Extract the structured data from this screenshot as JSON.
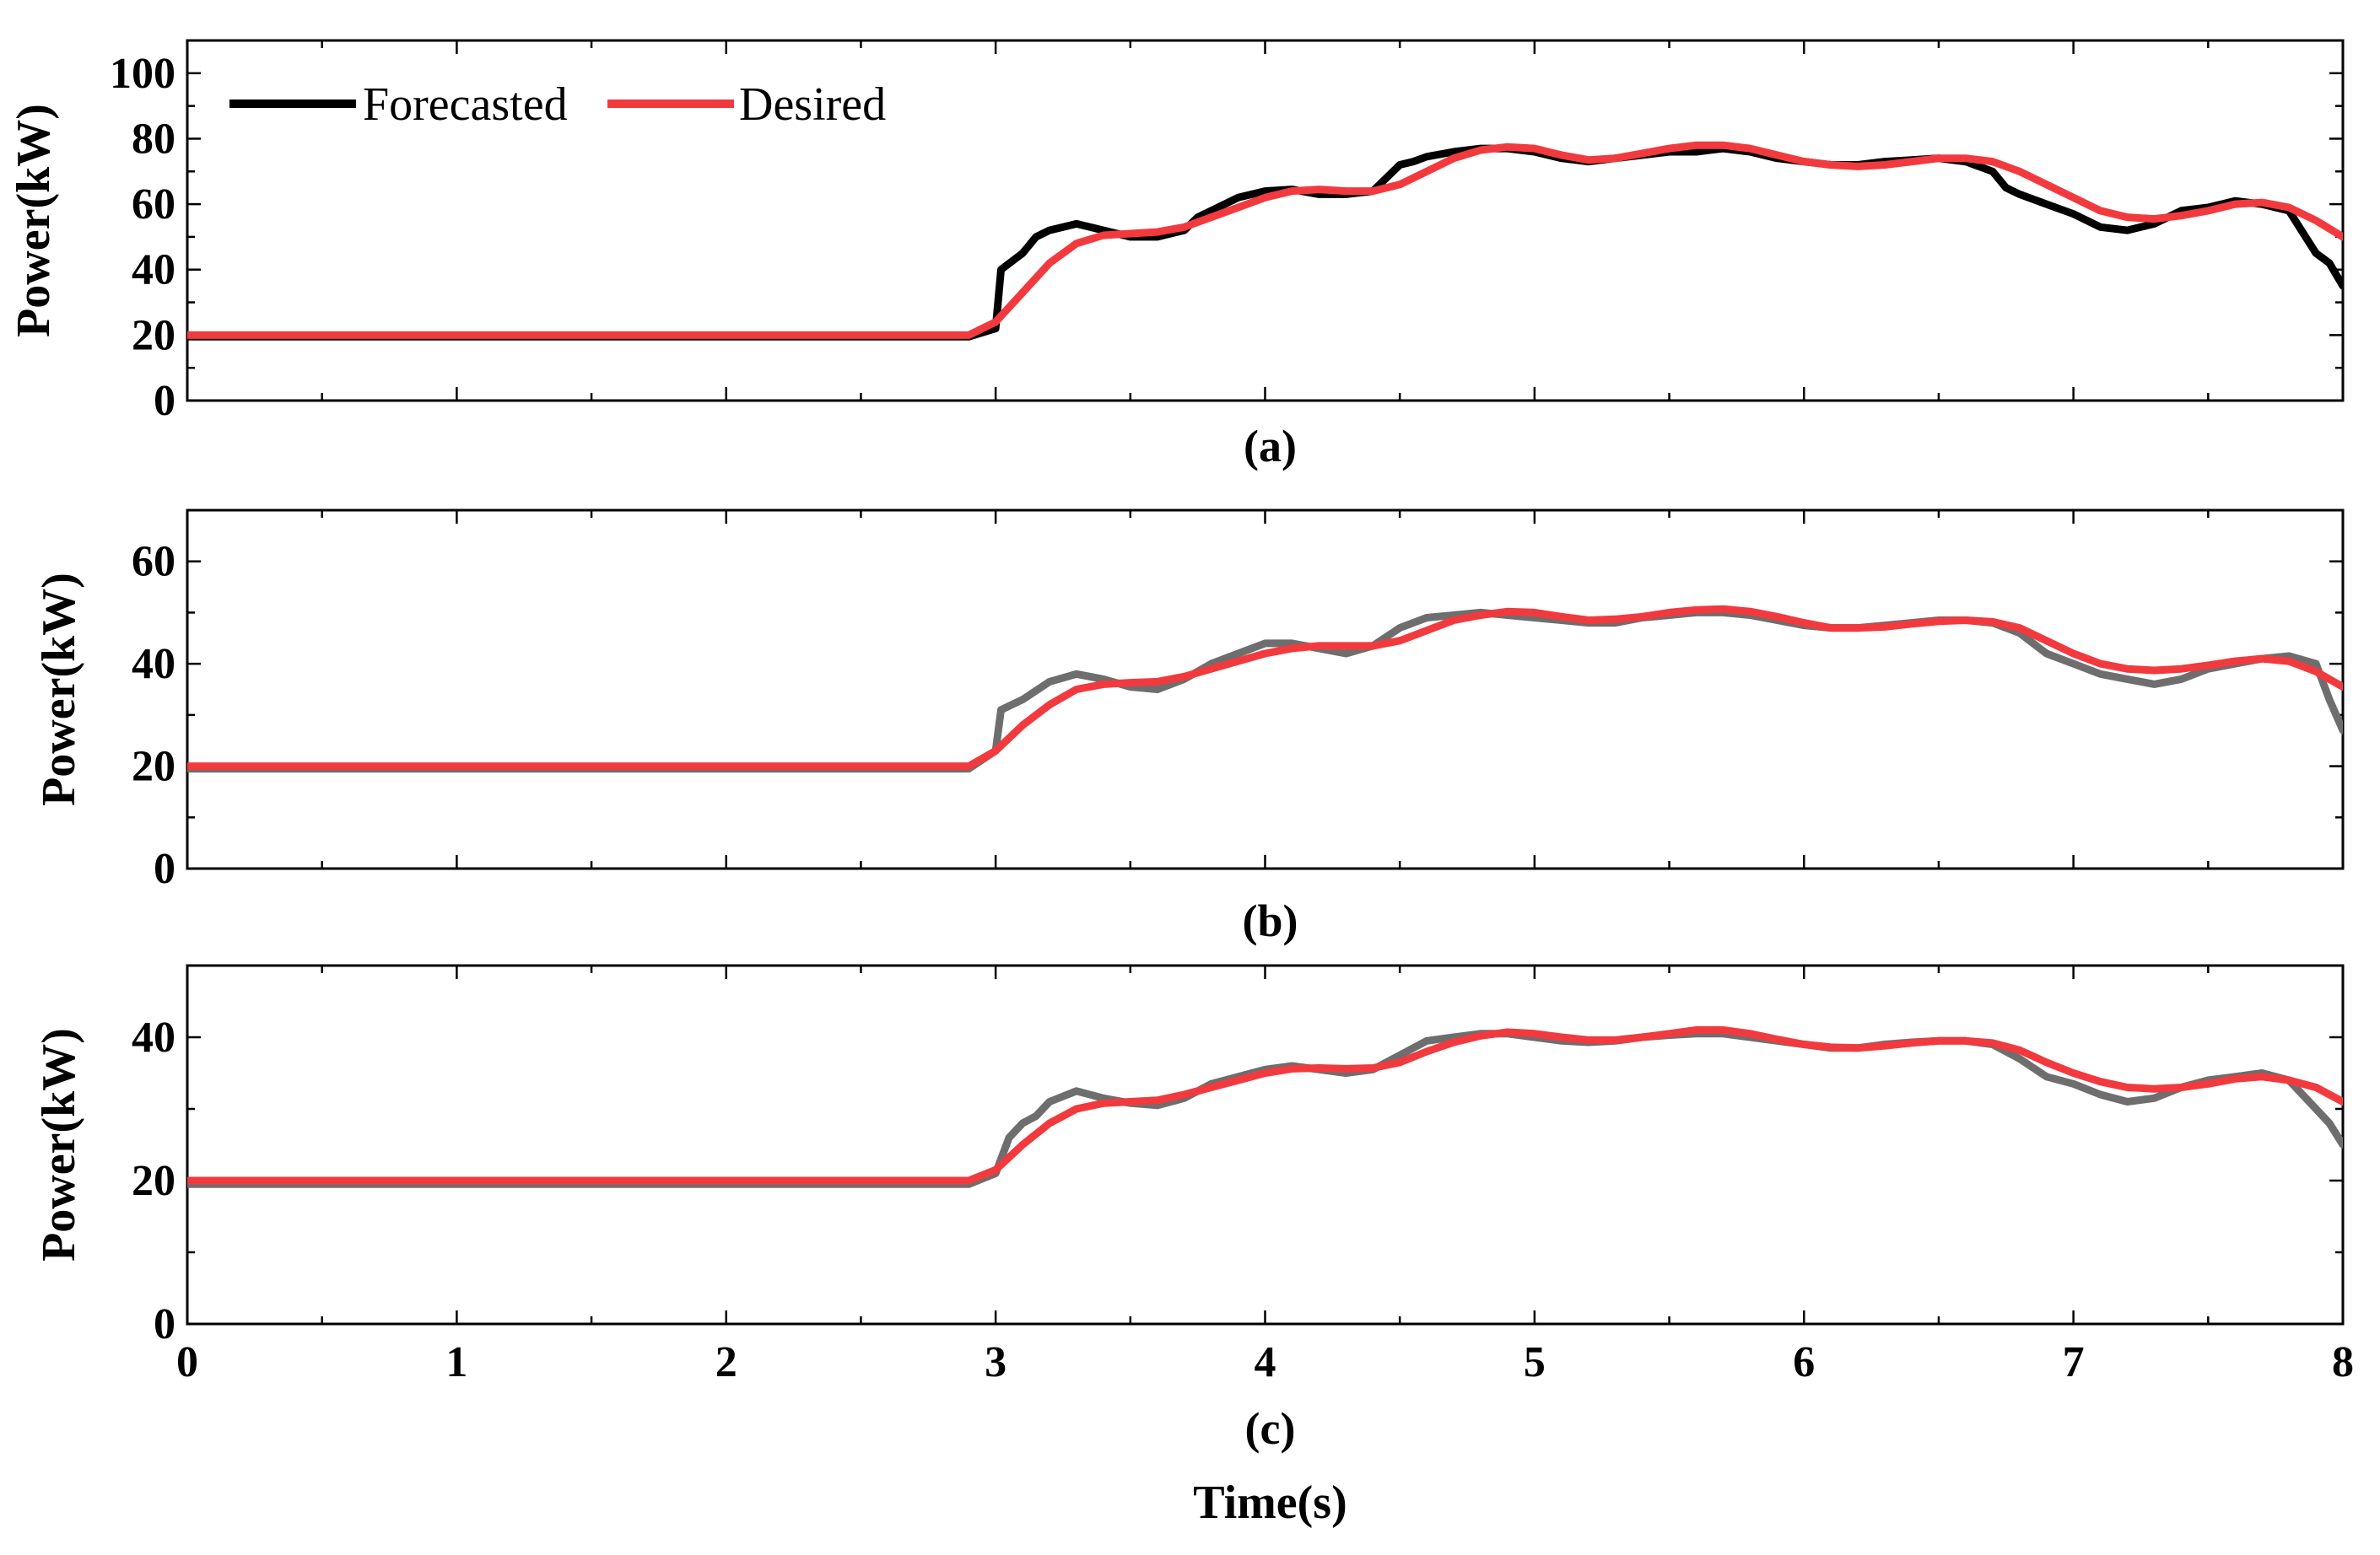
{
  "chart_data": [
    {
      "type": "line",
      "panel_label": "(a)",
      "ylabel": "Power(kW)",
      "xlabel": "",
      "xlim": [
        0,
        8
      ],
      "ylim": [
        0,
        110
      ],
      "yticks": [
        0,
        20,
        40,
        60,
        80,
        100
      ],
      "legend": {
        "placement": "top-left",
        "entries": [
          "Forecasted",
          "Desired"
        ]
      },
      "series": [
        {
          "name": "Forecasted",
          "color": "#000000",
          "x": [
            0,
            2.9,
            3.0,
            3.02,
            3.1,
            3.15,
            3.2,
            3.3,
            3.4,
            3.5,
            3.6,
            3.7,
            3.75,
            3.8,
            3.9,
            4.0,
            4.1,
            4.2,
            4.3,
            4.4,
            4.5,
            4.55,
            4.6,
            4.7,
            4.8,
            4.9,
            5.0,
            5.1,
            5.2,
            5.3,
            5.4,
            5.5,
            5.6,
            5.7,
            5.8,
            5.9,
            6.0,
            6.1,
            6.2,
            6.3,
            6.4,
            6.5,
            6.6,
            6.7,
            6.75,
            6.8,
            6.9,
            7.0,
            7.1,
            7.2,
            7.3,
            7.4,
            7.5,
            7.6,
            7.7,
            7.8,
            7.9,
            7.95,
            8.0
          ],
          "y": [
            19.5,
            19.5,
            22,
            40,
            45,
            50,
            52,
            54,
            52,
            50,
            50,
            52,
            56,
            58,
            62,
            64,
            64.5,
            63,
            63,
            64,
            72,
            73,
            74.5,
            76,
            77,
            77,
            76,
            74,
            73,
            74,
            75,
            76,
            76,
            77,
            76,
            74,
            73,
            72,
            72,
            73,
            73.5,
            74,
            73,
            70,
            65,
            63,
            60,
            57,
            53,
            52,
            54,
            58,
            59,
            61,
            60,
            58,
            45,
            42,
            35
          ]
        },
        {
          "name": "Desired",
          "color": "#f23a3e",
          "x": [
            0,
            2.9,
            3.0,
            3.1,
            3.2,
            3.3,
            3.4,
            3.5,
            3.6,
            3.7,
            3.8,
            3.9,
            4.0,
            4.1,
            4.2,
            4.3,
            4.4,
            4.5,
            4.6,
            4.7,
            4.8,
            4.9,
            5.0,
            5.1,
            5.2,
            5.3,
            5.4,
            5.5,
            5.6,
            5.7,
            5.8,
            5.9,
            6.0,
            6.1,
            6.2,
            6.3,
            6.4,
            6.5,
            6.6,
            6.7,
            6.8,
            6.9,
            7.0,
            7.1,
            7.2,
            7.3,
            7.4,
            7.5,
            7.6,
            7.7,
            7.8,
            7.9,
            8.0
          ],
          "y": [
            20,
            20,
            24,
            33,
            42,
            48,
            50.5,
            51,
            51.5,
            53,
            56,
            59,
            62,
            64,
            64.5,
            64,
            64,
            66,
            70,
            74,
            76.5,
            77.5,
            77,
            75,
            73.5,
            74,
            75.5,
            77,
            78,
            78,
            77,
            75,
            73,
            72,
            71.5,
            72,
            73,
            74,
            74,
            73,
            70,
            66,
            62,
            58,
            56,
            55.5,
            56.5,
            58,
            60,
            60.5,
            59,
            55,
            50
          ]
        }
      ]
    },
    {
      "type": "line",
      "panel_label": "(b)",
      "ylabel": "Power(kW)",
      "xlabel": "",
      "xlim": [
        0,
        8
      ],
      "ylim": [
        0,
        70
      ],
      "yticks": [
        0,
        20,
        40,
        60
      ],
      "series": [
        {
          "name": "Forecasted",
          "color": "#6e6e6e",
          "x": [
            0,
            2.9,
            3.0,
            3.02,
            3.1,
            3.2,
            3.3,
            3.4,
            3.5,
            3.6,
            3.7,
            3.8,
            3.9,
            4.0,
            4.1,
            4.2,
            4.3,
            4.4,
            4.5,
            4.6,
            4.7,
            4.8,
            4.9,
            5.0,
            5.1,
            5.2,
            5.3,
            5.4,
            5.5,
            5.6,
            5.7,
            5.8,
            5.9,
            6.0,
            6.1,
            6.2,
            6.3,
            6.4,
            6.5,
            6.6,
            6.7,
            6.8,
            6.9,
            7.0,
            7.1,
            7.2,
            7.3,
            7.4,
            7.5,
            7.6,
            7.7,
            7.8,
            7.9,
            7.95,
            8.0
          ],
          "y": [
            19.5,
            19.5,
            23,
            31,
            33,
            36.5,
            38,
            37,
            35.5,
            35,
            37,
            40,
            42,
            44,
            44,
            43,
            42,
            43.5,
            47,
            49,
            49.5,
            50,
            49.5,
            49,
            48.5,
            48,
            48,
            49,
            49.5,
            50,
            50,
            49.5,
            48.5,
            47.5,
            47,
            47,
            47.5,
            48,
            48.5,
            48.5,
            48,
            46,
            42,
            40,
            38,
            37,
            36,
            37,
            39,
            40,
            41,
            41.5,
            40,
            33,
            27
          ]
        },
        {
          "name": "Desired",
          "color": "#f23a3e",
          "x": [
            0,
            2.9,
            3.0,
            3.1,
            3.2,
            3.3,
            3.4,
            3.5,
            3.6,
            3.7,
            3.8,
            3.9,
            4.0,
            4.1,
            4.2,
            4.3,
            4.4,
            4.5,
            4.6,
            4.7,
            4.8,
            4.9,
            5.0,
            5.1,
            5.2,
            5.3,
            5.4,
            5.5,
            5.6,
            5.7,
            5.8,
            5.9,
            6.0,
            6.1,
            6.2,
            6.3,
            6.4,
            6.5,
            6.6,
            6.7,
            6.8,
            6.9,
            7.0,
            7.1,
            7.2,
            7.3,
            7.4,
            7.5,
            7.6,
            7.7,
            7.8,
            7.9,
            8.0
          ],
          "y": [
            20,
            20,
            23,
            28,
            32,
            35,
            36,
            36.3,
            36.5,
            37.5,
            39,
            40.5,
            42,
            43,
            43.5,
            43.5,
            43.5,
            44.5,
            46.5,
            48.5,
            49.5,
            50.2,
            50,
            49.2,
            48.5,
            48.7,
            49.2,
            50,
            50.5,
            50.7,
            50.2,
            49.2,
            48,
            47,
            47,
            47.2,
            47.8,
            48.3,
            48.5,
            48.2,
            47,
            44.5,
            42,
            40,
            39,
            38.7,
            39,
            39.7,
            40.5,
            41,
            40.5,
            38.5,
            35.5
          ]
        }
      ]
    },
    {
      "type": "line",
      "panel_label": "(c)",
      "ylabel": "Power(kW)",
      "xlabel": "Time(s)",
      "xlim": [
        0,
        8
      ],
      "xticks": [
        0,
        1,
        2,
        3,
        4,
        5,
        6,
        7,
        8
      ],
      "ylim": [
        0,
        50
      ],
      "yticks": [
        0,
        20,
        40
      ],
      "series": [
        {
          "name": "Forecasted",
          "color": "#6e6e6e",
          "x": [
            0,
            2.9,
            3.0,
            3.05,
            3.1,
            3.15,
            3.2,
            3.3,
            3.4,
            3.5,
            3.6,
            3.7,
            3.8,
            3.9,
            4.0,
            4.1,
            4.2,
            4.3,
            4.4,
            4.5,
            4.6,
            4.7,
            4.8,
            4.9,
            5.0,
            5.1,
            5.2,
            5.3,
            5.4,
            5.5,
            5.6,
            5.7,
            5.8,
            5.9,
            6.0,
            6.1,
            6.2,
            6.3,
            6.4,
            6.5,
            6.6,
            6.7,
            6.8,
            6.9,
            7.0,
            7.1,
            7.2,
            7.3,
            7.4,
            7.5,
            7.6,
            7.7,
            7.8,
            7.9,
            7.95,
            8.0
          ],
          "y": [
            19.5,
            19.5,
            21,
            26,
            28,
            29,
            31,
            32.5,
            31.5,
            30.8,
            30.5,
            31.5,
            33.5,
            34.5,
            35.5,
            36,
            35.5,
            35,
            35.5,
            37.5,
            39.5,
            40,
            40.5,
            40.5,
            40,
            39.5,
            39.3,
            39.5,
            40,
            40.3,
            40.5,
            40.5,
            40,
            39.5,
            39,
            38.5,
            38.5,
            39,
            39.3,
            39.5,
            39.5,
            39,
            37,
            34.5,
            33.5,
            32,
            31,
            31.5,
            33,
            34,
            34.5,
            35,
            34,
            30,
            28,
            25
          ]
        },
        {
          "name": "Desired",
          "color": "#f23a3e",
          "x": [
            0,
            2.9,
            3.0,
            3.1,
            3.2,
            3.3,
            3.4,
            3.5,
            3.6,
            3.7,
            3.8,
            3.9,
            4.0,
            4.1,
            4.2,
            4.3,
            4.4,
            4.5,
            4.6,
            4.7,
            4.8,
            4.9,
            5.0,
            5.1,
            5.2,
            5.3,
            5.4,
            5.5,
            5.6,
            5.7,
            5.8,
            5.9,
            6.0,
            6.1,
            6.2,
            6.3,
            6.4,
            6.5,
            6.6,
            6.7,
            6.8,
            6.9,
            7.0,
            7.1,
            7.2,
            7.3,
            7.4,
            7.5,
            7.6,
            7.7,
            7.8,
            7.9,
            8.0
          ],
          "y": [
            20,
            20,
            21.5,
            25,
            28,
            30,
            30.8,
            31,
            31.2,
            32,
            33,
            34,
            35,
            35.6,
            35.7,
            35.6,
            35.7,
            36.5,
            38,
            39.3,
            40.2,
            40.7,
            40.5,
            40,
            39.6,
            39.6,
            40,
            40.5,
            41,
            41,
            40.5,
            39.7,
            39,
            38.6,
            38.5,
            38.8,
            39.2,
            39.5,
            39.5,
            39.2,
            38.2,
            36.5,
            35,
            33.8,
            33,
            32.8,
            33,
            33.5,
            34.2,
            34.5,
            34,
            33,
            31
          ]
        }
      ]
    }
  ]
}
